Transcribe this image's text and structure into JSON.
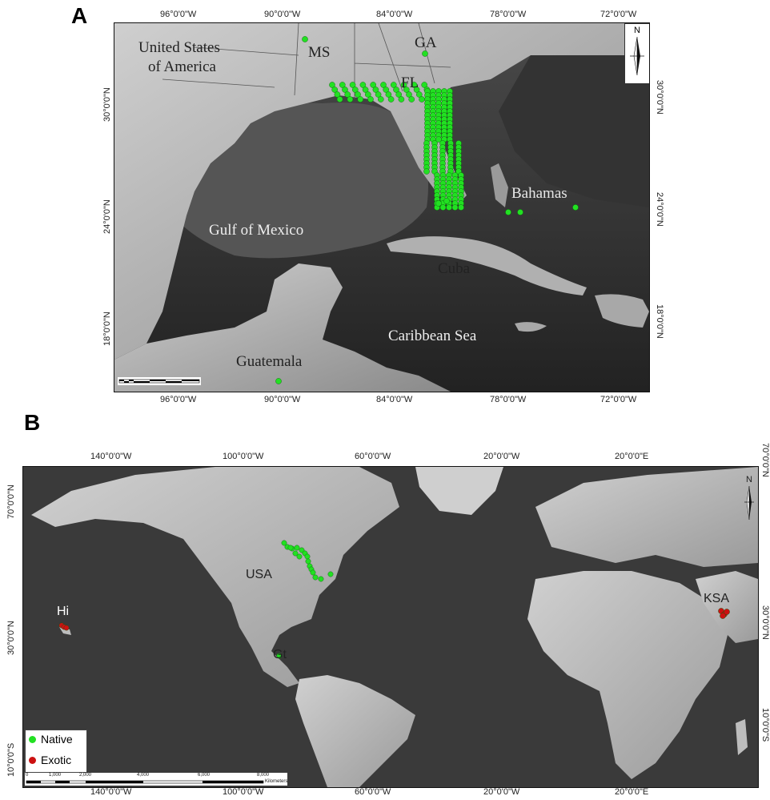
{
  "panelA": {
    "letter": "A",
    "top_ticks": [
      "96°0'0\"W",
      "90°0'0\"W",
      "84°0'0\"W",
      "78°0'0\"W",
      "72°0'0\"W"
    ],
    "bottom_ticks": [
      "96°0'0\"W",
      "90°0'0\"W",
      "84°0'0\"W",
      "78°0'0\"W",
      "72°0'0\"W"
    ],
    "left_ticks": [
      "30°0'0\"N",
      "24°0'0\"N",
      "18°0'0\"N"
    ],
    "right_ticks": [
      "30°0'0\"N",
      "24°0'0\"N",
      "18°0'0\"N"
    ],
    "labels": {
      "usa_line1": "United States",
      "usa_line2": "of America",
      "ms": "MS",
      "ga": "GA",
      "fl": "FL",
      "bahamas": "Bahamas",
      "gulf": "Gulf of Mexico",
      "cuba": "Cuba",
      "caribbean": "Caribbean Sea",
      "guatemala": "Guatemala"
    },
    "north_label": "N"
  },
  "panelB": {
    "letter": "B",
    "top_ticks": [
      "140°0'0\"W",
      "100°0'0\"W",
      "60°0'0\"W",
      "20°0'0\"W",
      "20°0'0\"E"
    ],
    "bottom_ticks": [
      "140°0'0\"W",
      "100°0'0\"W",
      "60°0'0\"W",
      "20°0'0\"W",
      "20°0'0\"E"
    ],
    "left_ticks": [
      "70°0'0\"N",
      "30°0'0\"N",
      "10°0'0\"S"
    ],
    "right_ticks": [
      "70°0'0\"N",
      "30°0'0\"N",
      "10°0'0\"S"
    ],
    "labels": {
      "usa": "USA",
      "gt": "Gt",
      "hi": "Hi",
      "ksa": "KSA"
    },
    "north_label": "N",
    "legend": {
      "native": "Native",
      "exotic": "Exotic"
    },
    "scale_ticks": [
      "0",
      "1,000",
      "2,000",
      "4,000",
      "6,000",
      "8,000"
    ],
    "scale_unit": "Kilometers"
  },
  "colors": {
    "native": "#22e022",
    "exotic": "#cc1111",
    "ocean_deep": "#2c2c2c",
    "land": "#b8b8b8"
  }
}
